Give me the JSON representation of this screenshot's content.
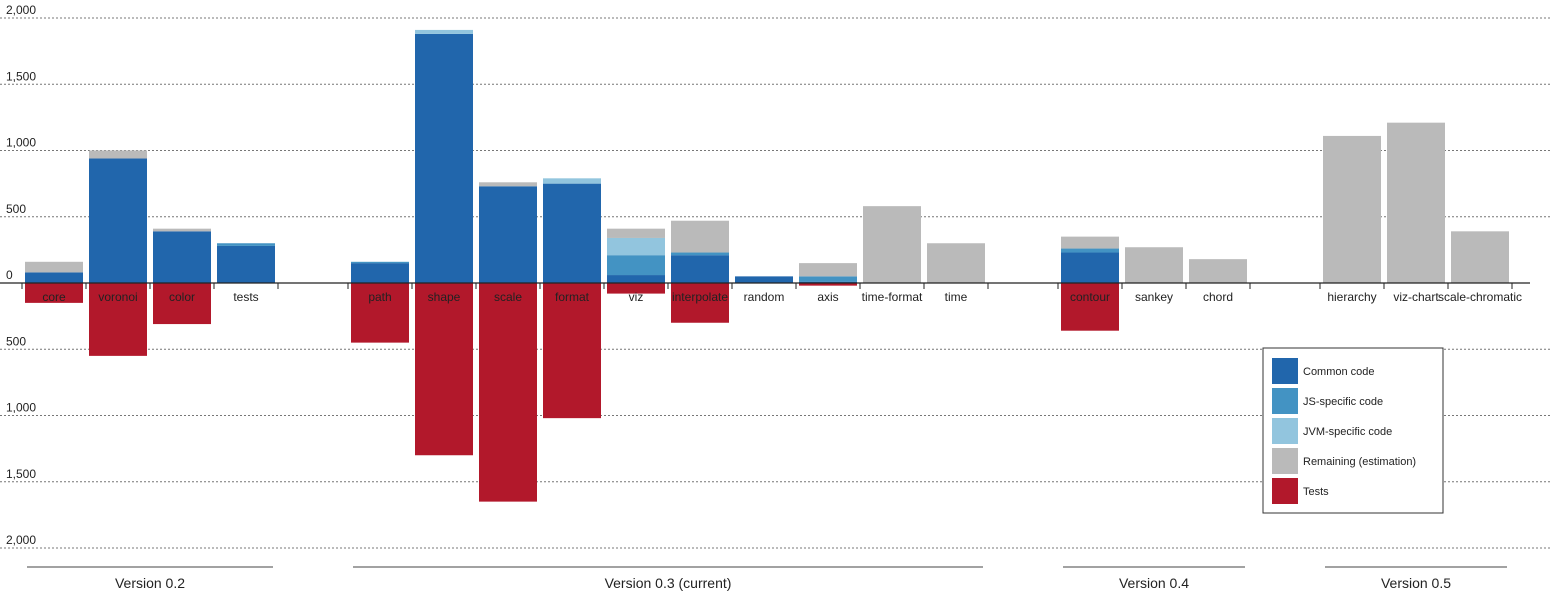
{
  "chart_data": {
    "type": "bar",
    "stacked": true,
    "diverging": true,
    "y_ticks": [
      {
        "value": 2000,
        "label": "2,000"
      },
      {
        "value": 1500,
        "label": "1,500"
      },
      {
        "value": 1000,
        "label": "1,000"
      },
      {
        "value": 500,
        "label": "500"
      },
      {
        "value": 0,
        "label": "0"
      },
      {
        "value": -500,
        "label": "500"
      },
      {
        "value": -1000,
        "label": "1,000"
      },
      {
        "value": -1500,
        "label": "1,500"
      },
      {
        "value": -2000,
        "label": "2,000"
      }
    ],
    "ylim": [
      -2000,
      2000
    ],
    "grid": true,
    "legend_position": "bottom-right",
    "series": [
      {
        "key": "common",
        "name": "Common code",
        "color": "#2166ac",
        "direction": "up"
      },
      {
        "key": "js",
        "name": "JS-specific code",
        "color": "#4393c3",
        "direction": "up"
      },
      {
        "key": "jvm",
        "name": "JVM-specific code",
        "color": "#92c5de",
        "direction": "up"
      },
      {
        "key": "remaining",
        "name": "Remaining (estimation)",
        "color": "#bababa",
        "direction": "up"
      },
      {
        "key": "tests",
        "name": "Tests",
        "color": "#b2182b",
        "direction": "down"
      }
    ],
    "categories": [
      {
        "label": "core",
        "group": 0,
        "common": 80,
        "js": 0,
        "jvm": 0,
        "remaining": 80,
        "tests": 150
      },
      {
        "label": "voronoi",
        "group": 0,
        "common": 940,
        "js": 0,
        "jvm": 0,
        "remaining": 60,
        "tests": 550
      },
      {
        "label": "color",
        "group": 0,
        "common": 390,
        "js": 0,
        "jvm": 0,
        "remaining": 20,
        "tests": 310
      },
      {
        "label": "tests",
        "group": 0,
        "common": 280,
        "js": 20,
        "jvm": 0,
        "remaining": 0,
        "tests": 0
      },
      {
        "label": "path",
        "group": 1,
        "common": 150,
        "js": 10,
        "jvm": 0,
        "remaining": 0,
        "tests": 450
      },
      {
        "label": "shape",
        "group": 1,
        "common": 1880,
        "js": 0,
        "jvm": 30,
        "remaining": 0,
        "tests": 1300
      },
      {
        "label": "scale",
        "group": 1,
        "common": 730,
        "js": 0,
        "jvm": 0,
        "remaining": 30,
        "tests": 1650
      },
      {
        "label": "format",
        "group": 1,
        "common": 750,
        "js": 0,
        "jvm": 40,
        "remaining": 0,
        "tests": 1020
      },
      {
        "label": "viz",
        "group": 1,
        "common": 60,
        "js": 150,
        "jvm": 130,
        "remaining": 70,
        "tests": 80
      },
      {
        "label": "interpolate",
        "group": 1,
        "common": 210,
        "js": 20,
        "jvm": 0,
        "remaining": 240,
        "tests": 300
      },
      {
        "label": "random",
        "group": 1,
        "common": 50,
        "js": 0,
        "jvm": 0,
        "remaining": 0,
        "tests": 0
      },
      {
        "label": "axis",
        "group": 1,
        "common": 10,
        "js": 40,
        "jvm": 0,
        "remaining": 100,
        "tests": 20
      },
      {
        "label": "time-format",
        "group": 1,
        "common": 0,
        "js": 0,
        "jvm": 0,
        "remaining": 580,
        "tests": 0
      },
      {
        "label": "time",
        "group": 1,
        "common": 0,
        "js": 0,
        "jvm": 0,
        "remaining": 300,
        "tests": 0
      },
      {
        "label": "contour",
        "group": 2,
        "common": 230,
        "js": 30,
        "jvm": 0,
        "remaining": 90,
        "tests": 360
      },
      {
        "label": "sankey",
        "group": 2,
        "common": 0,
        "js": 0,
        "jvm": 0,
        "remaining": 270,
        "tests": 0
      },
      {
        "label": "chord",
        "group": 2,
        "common": 0,
        "js": 0,
        "jvm": 0,
        "remaining": 180,
        "tests": 0
      },
      {
        "label": "hierarchy",
        "group": 3,
        "common": 0,
        "js": 0,
        "jvm": 0,
        "remaining": 1110,
        "tests": 0
      },
      {
        "label": "viz-chart",
        "group": 3,
        "common": 0,
        "js": 0,
        "jvm": 0,
        "remaining": 1210,
        "tests": 0
      },
      {
        "label": "scale-chromatic",
        "group": 3,
        "common": 0,
        "js": 0,
        "jvm": 0,
        "remaining": 390,
        "tests": 0
      }
    ],
    "groups": [
      {
        "label": "Version 0.2"
      },
      {
        "label": "Version 0.3 (current)"
      },
      {
        "label": "Version 0.4"
      },
      {
        "label": "Version 0.5"
      }
    ]
  }
}
